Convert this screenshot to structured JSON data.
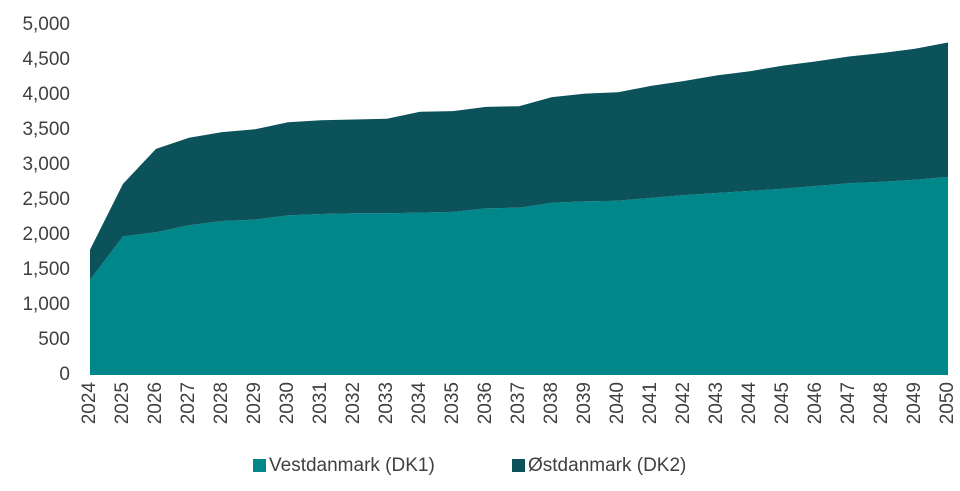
{
  "chart_data": {
    "type": "stacked-area",
    "categories": [
      "2024",
      "2025",
      "2026",
      "2027",
      "2028",
      "2029",
      "2030",
      "2031",
      "2032",
      "2033",
      "2034",
      "2035",
      "2036",
      "2037",
      "2038",
      "2039",
      "2040",
      "2041",
      "2042",
      "2043",
      "2044",
      "2045",
      "2046",
      "2047",
      "2048",
      "2049",
      "2050"
    ],
    "series": [
      {
        "name": "Vestdanmark (DK1)",
        "color": "#00878a",
        "values": [
          1360,
          1980,
          2040,
          2140,
          2200,
          2220,
          2280,
          2300,
          2310,
          2310,
          2320,
          2330,
          2380,
          2390,
          2460,
          2480,
          2490,
          2530,
          2570,
          2600,
          2630,
          2660,
          2700,
          2740,
          2760,
          2790,
          2830
        ]
      },
      {
        "name": "Østdanmark (DK2)",
        "color": "#0b525b",
        "values": [
          430,
          750,
          1190,
          1250,
          1270,
          1290,
          1330,
          1340,
          1340,
          1350,
          1440,
          1440,
          1450,
          1450,
          1510,
          1540,
          1550,
          1600,
          1630,
          1680,
          1710,
          1760,
          1780,
          1810,
          1840,
          1870,
          1920
        ]
      }
    ],
    "ylim": [
      0,
      5000
    ],
    "yticks": [
      0,
      500,
      {
        "value": 1000,
        "label": "1,000"
      },
      {
        "value": 1500,
        "label": "1,500"
      },
      {
        "value": 2000,
        "label": "2,000"
      },
      {
        "value": 2500,
        "label": "2,500"
      },
      {
        "value": 3000,
        "label": "3,000"
      },
      {
        "value": 3500,
        "label": "3,500"
      },
      {
        "value": 4000,
        "label": "4,000"
      },
      {
        "value": 4500,
        "label": "4,500"
      },
      {
        "value": 5000,
        "label": "5,000"
      }
    ],
    "legend": "bottom"
  }
}
